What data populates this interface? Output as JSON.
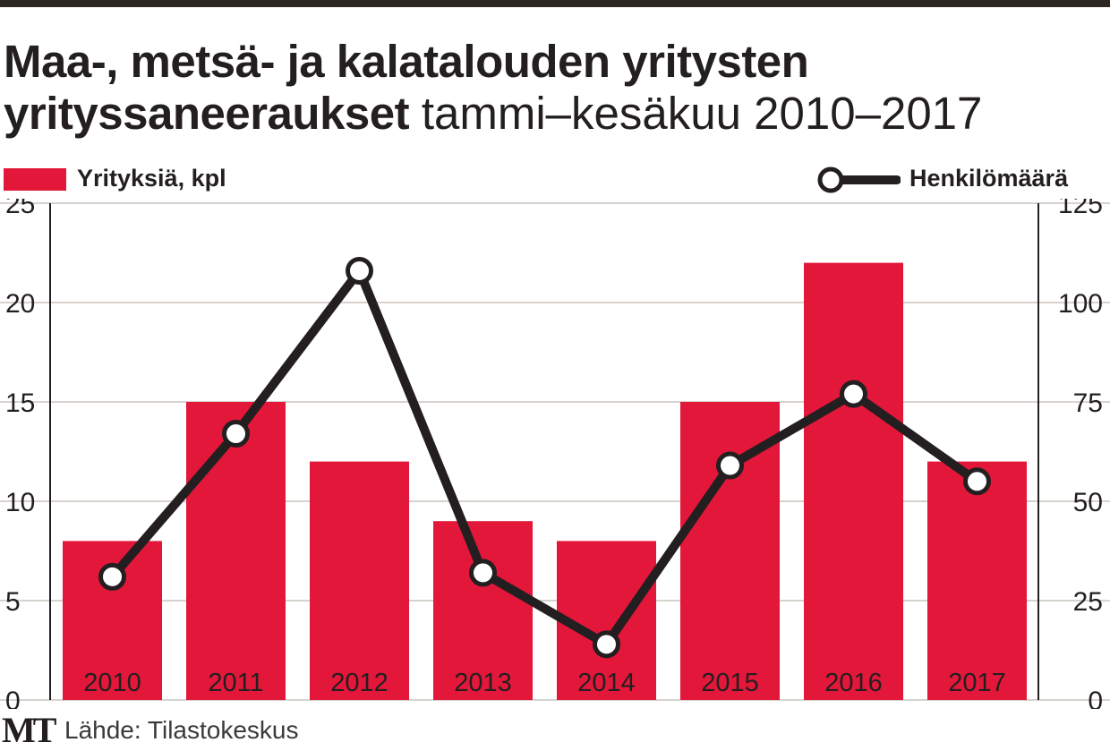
{
  "title_bold": "Maa-, metsä- ja kalatalouden yritysten yrityssaneeraukset",
  "title_light": "tammi–kesäkuu 2010–2017",
  "legend": {
    "bar_label": "Yrityksiä, kpl",
    "line_label": "Henkilömäärä"
  },
  "colors": {
    "bar": "#e3173a",
    "line": "#231f20",
    "marker_fill": "#ffffff"
  },
  "source": "Lähde: Tilastokeskus",
  "logo": "MT",
  "chart_data": {
    "type": "bar",
    "title": "Maa-, metsä- ja kalatalouden yritysten yrityssaneeraukset tammi–kesäkuu 2010–2017",
    "categories": [
      "2010",
      "2011",
      "2012",
      "2013",
      "2014",
      "2015",
      "2016",
      "2017"
    ],
    "series": [
      {
        "name": "Yrityksiä, kpl",
        "type": "bar",
        "axis": "left",
        "values": [
          8,
          15,
          12,
          9,
          8,
          15,
          22,
          12
        ]
      },
      {
        "name": "Henkilömäärä",
        "type": "line",
        "axis": "right",
        "values": [
          31,
          67,
          108,
          32,
          14,
          59,
          77,
          55
        ]
      }
    ],
    "y_left": {
      "min": 0,
      "max": 25,
      "ticks": [
        0,
        5,
        10,
        15,
        20,
        25
      ]
    },
    "y_right": {
      "min": 0,
      "max": 125,
      "ticks": [
        0,
        25,
        50,
        75,
        100,
        125
      ]
    },
    "xlabel": "",
    "ylabel": "",
    "grid": "horizontal",
    "legend_position": "top"
  }
}
